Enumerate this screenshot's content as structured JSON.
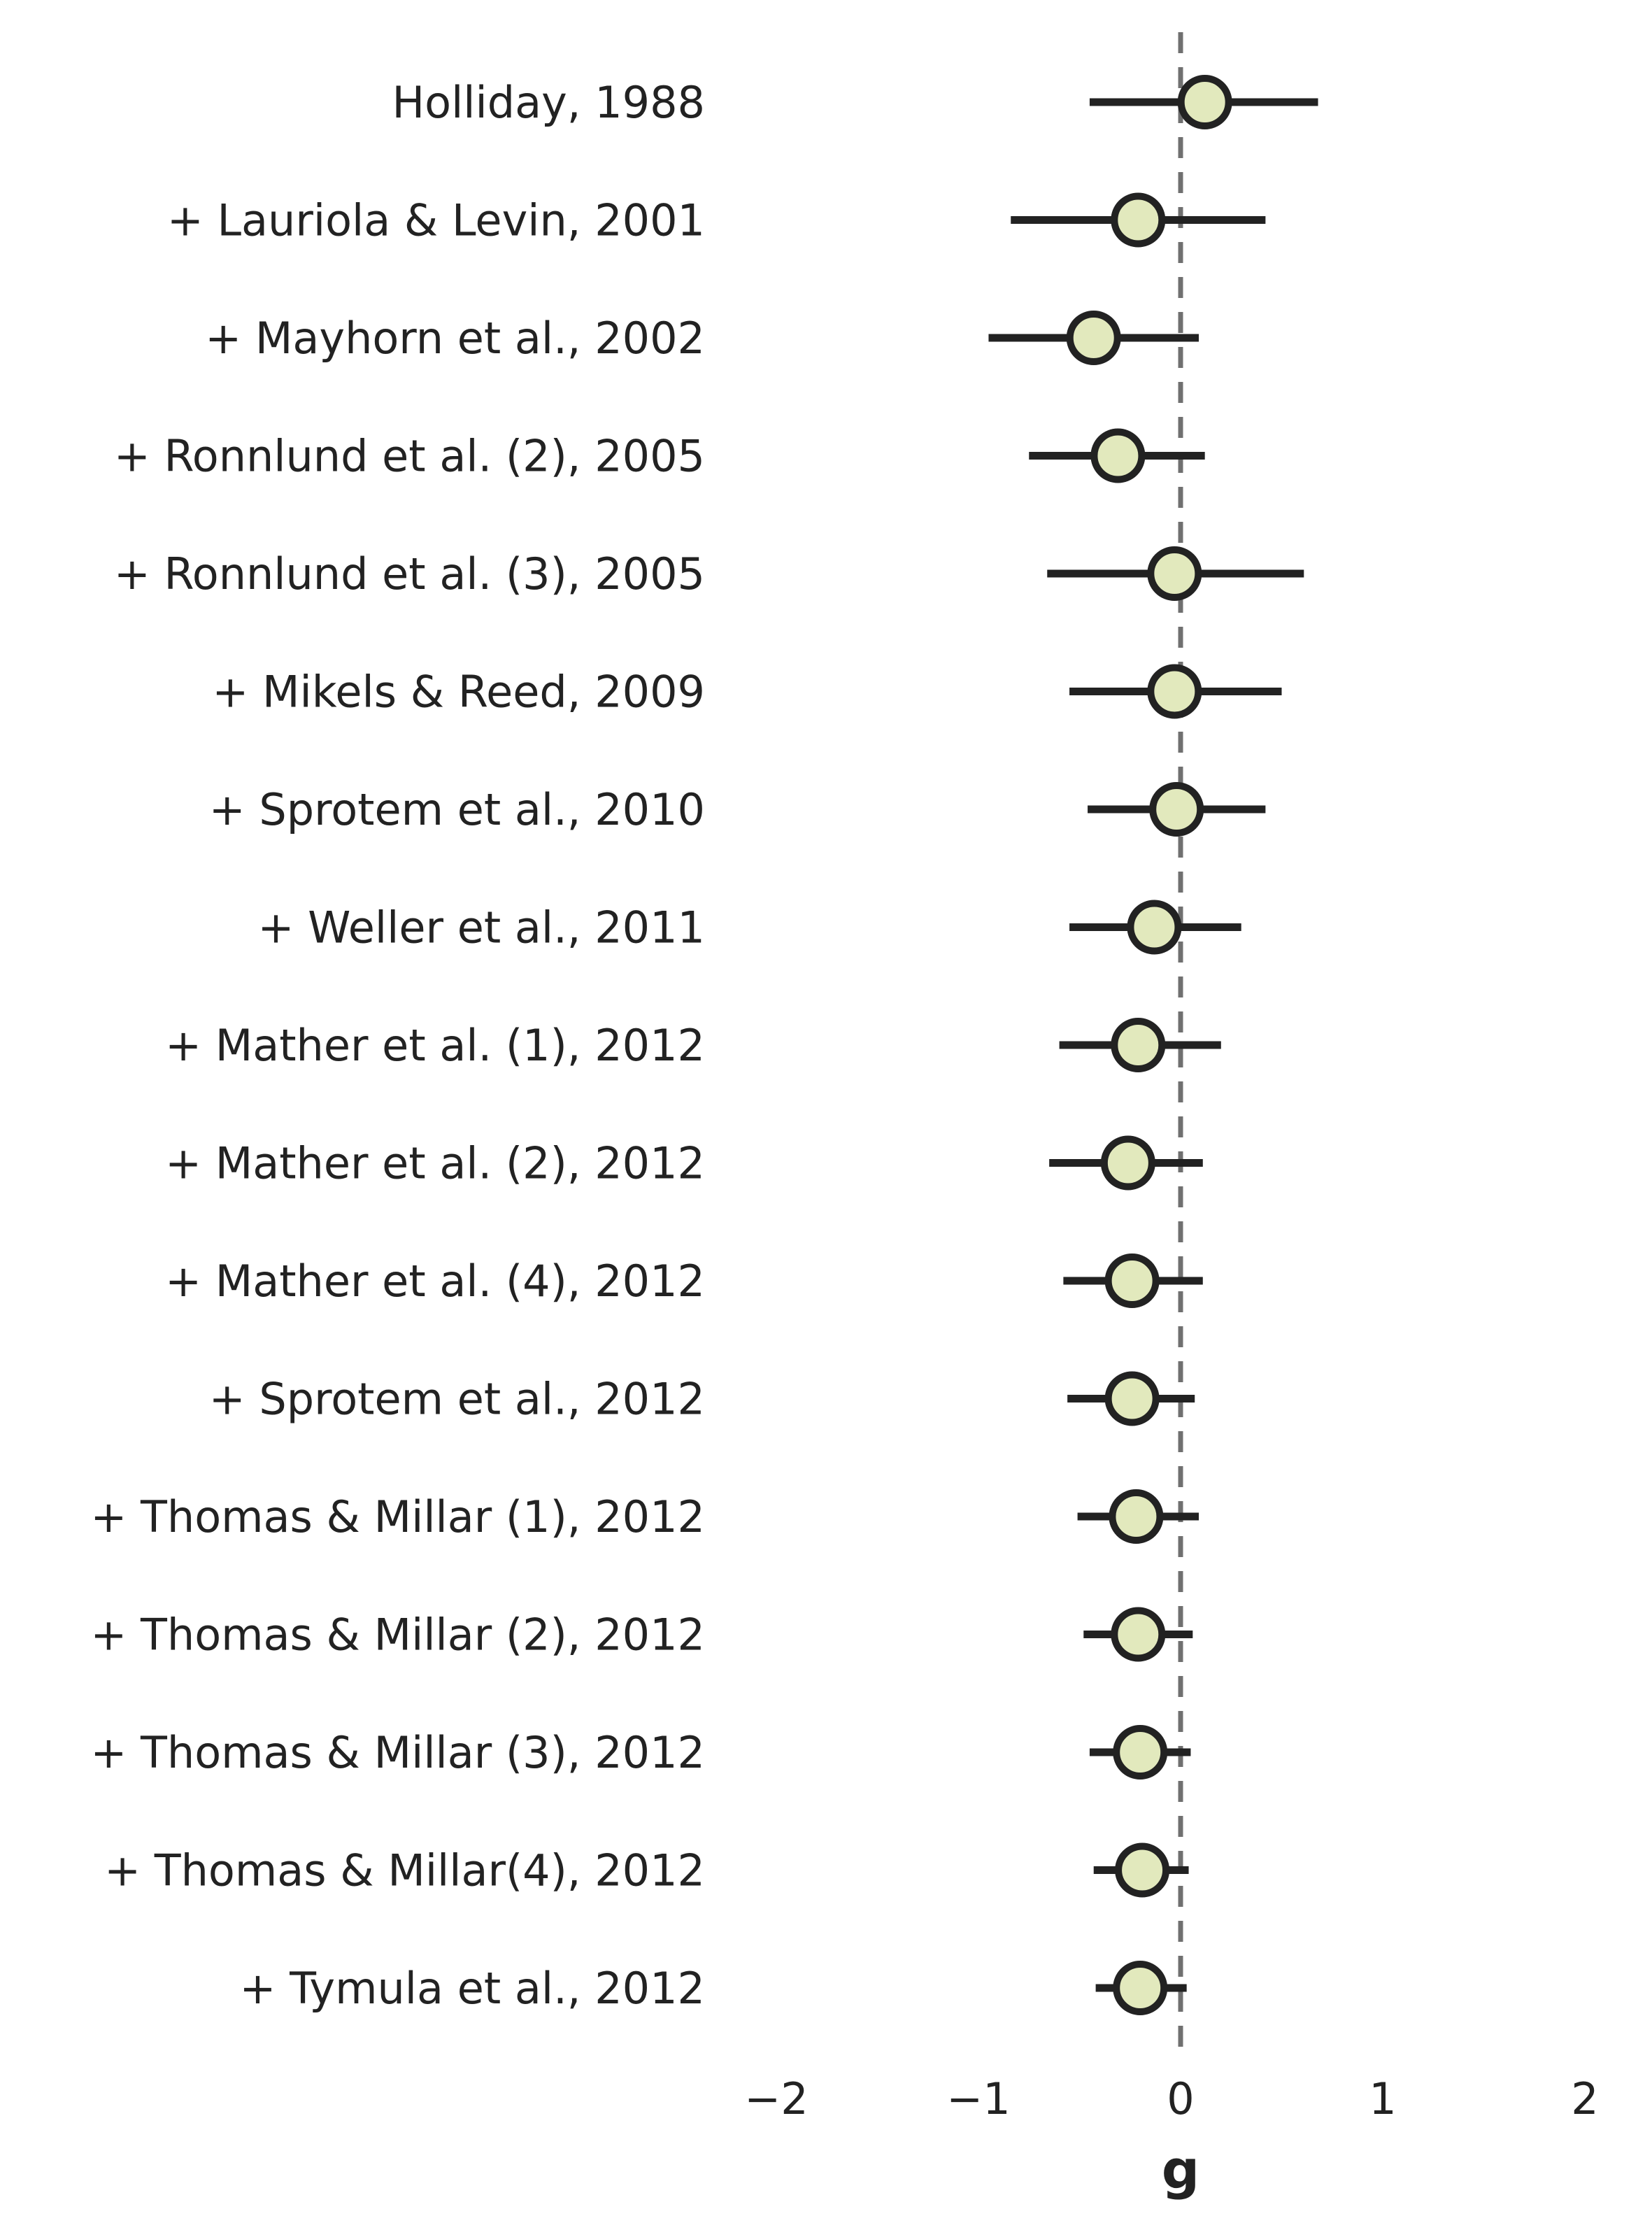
{
  "chart_data": {
    "type": "forest",
    "xlabel": "g",
    "xlim": [
      -2,
      2
    ],
    "xticks": [
      -2,
      -1,
      0,
      1,
      2
    ],
    "tick_labels": [
      "−2",
      "−1",
      "0",
      "1",
      "2"
    ],
    "reference_line": 0,
    "colors": {
      "marker_fill": "#e2e9bd",
      "stroke": "#222222",
      "reference_line": "#707070"
    },
    "studies": [
      {
        "label": "Holliday, 1988",
        "g": 0.12,
        "lower": -0.45,
        "upper": 0.68
      },
      {
        "label": "+ Lauriola & Levin, 2001",
        "g": -0.21,
        "lower": -0.84,
        "upper": 0.42
      },
      {
        "label": "+ Mayhorn et al., 2002",
        "g": -0.43,
        "lower": -0.95,
        "upper": 0.09
      },
      {
        "label": "+ Ronnlund et al. (2), 2005",
        "g": -0.31,
        "lower": -0.75,
        "upper": 0.12
      },
      {
        "label": "+ Ronnlund et al. (3), 2005",
        "g": -0.03,
        "lower": -0.66,
        "upper": 0.61
      },
      {
        "label": "+ Mikels & Reed, 2009",
        "g": -0.03,
        "lower": -0.55,
        "upper": 0.5
      },
      {
        "label": "+ Sprotem et al., 2010",
        "g": -0.02,
        "lower": -0.46,
        "upper": 0.42
      },
      {
        "label": "+ Weller et al., 2011",
        "g": -0.13,
        "lower": -0.55,
        "upper": 0.3
      },
      {
        "label": "+ Mather et al. (1), 2012",
        "g": -0.21,
        "lower": -0.6,
        "upper": 0.2
      },
      {
        "label": "+ Mather et al. (2), 2012",
        "g": -0.26,
        "lower": -0.65,
        "upper": 0.11
      },
      {
        "label": "+ Mather et al.  (4), 2012",
        "g": -0.24,
        "lower": -0.58,
        "upper": 0.11
      },
      {
        "label": "+ Sprotem et al., 2012",
        "g": -0.24,
        "lower": -0.56,
        "upper": 0.07
      },
      {
        "label": "+ Thomas & Millar (1), 2012",
        "g": -0.22,
        "lower": -0.51,
        "upper": 0.09
      },
      {
        "label": "+ Thomas & Millar (2), 2012",
        "g": -0.21,
        "lower": -0.48,
        "upper": 0.06
      },
      {
        "label": "+ Thomas & Millar (3), 2012",
        "g": -0.2,
        "lower": -0.45,
        "upper": 0.05
      },
      {
        "label": "+ Thomas & Millar(4), 2012",
        "g": -0.19,
        "lower": -0.43,
        "upper": 0.04
      },
      {
        "label": "+ Tymula et al., 2012",
        "g": -0.2,
        "lower": -0.42,
        "upper": 0.03
      }
    ]
  }
}
